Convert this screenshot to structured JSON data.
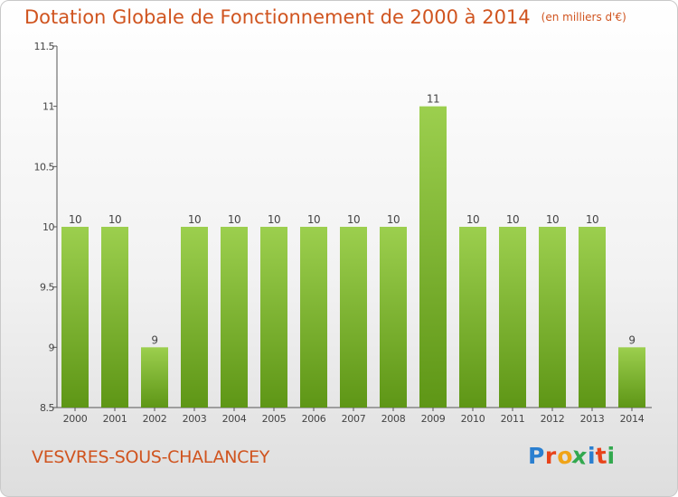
{
  "title": "Dotation Globale de Fonctionnement de 2000 à 2014",
  "unit_note": "(en milliers d'€)",
  "commune": "VESVRES-SOUS-CHALANCEY",
  "brand": "Proxiti",
  "colors": {
    "title": "#d0541f",
    "bar_light": "#9ccf4e",
    "bar_dark": "#5e9616",
    "axis": "#555555",
    "tick_text": "#444444"
  },
  "chart_data": {
    "type": "bar",
    "title": "Dotation Globale de Fonctionnement de 2000 à 2014",
    "categories": [
      "2000",
      "2001",
      "2002",
      "2003",
      "2004",
      "2005",
      "2006",
      "2007",
      "2008",
      "2009",
      "2010",
      "2011",
      "2012",
      "2013",
      "2014"
    ],
    "values": [
      10,
      10,
      9,
      10,
      10,
      10,
      10,
      10,
      10,
      11,
      10,
      10,
      10,
      10,
      9
    ],
    "labels": [
      "10",
      "10",
      "9",
      "10",
      "10",
      "10",
      "10",
      "10",
      "10",
      "11",
      "10",
      "10",
      "10",
      "10",
      "9"
    ],
    "ylim": [
      8.5,
      11.5
    ],
    "yticks": [
      8.5,
      9,
      9.5,
      10,
      10.5,
      11,
      11.5
    ],
    "ytick_labels": [
      "8.5",
      "9",
      "9.5",
      "10",
      "10.5",
      "11",
      "11.5"
    ],
    "xlabel": "",
    "ylabel": "",
    "grid": false,
    "legend": "none"
  }
}
